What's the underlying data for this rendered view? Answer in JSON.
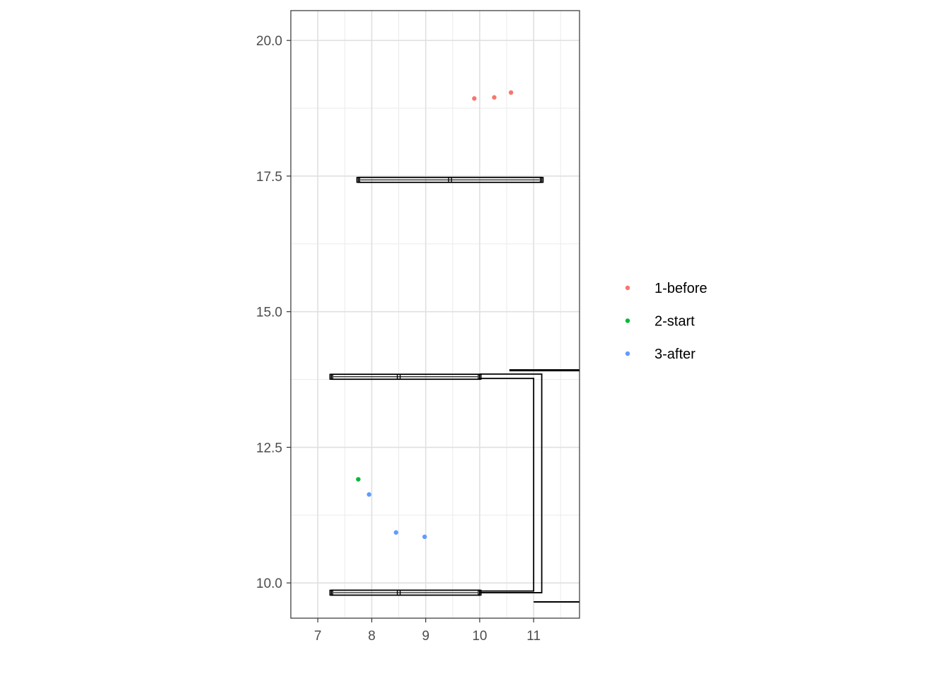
{
  "chart_data": {
    "type": "scatter",
    "title": "",
    "xlabel": "",
    "ylabel": "",
    "xlim": [
      6.5,
      11.85
    ],
    "ylim": [
      9.35,
      20.55
    ],
    "x_ticks": [
      7,
      8,
      9,
      10,
      11
    ],
    "x_tick_labels": [
      "7",
      "8",
      "9",
      "10",
      "11"
    ],
    "y_ticks": [
      10.0,
      12.5,
      15.0,
      17.5,
      20.0
    ],
    "y_tick_labels": [
      "10.0",
      "12.5",
      "15.0",
      "17.5",
      "20.0"
    ],
    "grid": true,
    "legend_position": "right",
    "series": [
      {
        "name": "1-before",
        "color": "#F8766D",
        "points": [
          [
            9.9,
            18.93
          ],
          [
            10.27,
            18.95
          ],
          [
            10.58,
            19.04
          ]
        ]
      },
      {
        "name": "2-start",
        "color": "#00BA38",
        "points": [
          [
            7.75,
            11.91
          ]
        ]
      },
      {
        "name": "3-after",
        "color": "#619CFF",
        "points": [
          [
            7.95,
            11.63
          ],
          [
            8.45,
            10.93
          ],
          [
            8.98,
            10.85
          ]
        ]
      }
    ],
    "outline_shapes": [
      {
        "x": [
          7.75,
          9.45,
          11.15
        ],
        "y": 17.43
      },
      {
        "x": [
          7.25,
          8.5,
          10.0
        ],
        "y": 13.8
      },
      {
        "x": [
          7.25,
          8.5,
          10.0
        ],
        "y": 9.82
      }
    ],
    "bracket": {
      "x_inner": 11.0,
      "x_outer": 11.15,
      "y_top": 13.85,
      "y_bottom": 9.82
    },
    "edge_lines": [
      {
        "x1": 10.55,
        "x2": 11.85,
        "y": 13.92
      },
      {
        "x1": 11.0,
        "x2": 11.85,
        "y": 9.65
      }
    ]
  }
}
